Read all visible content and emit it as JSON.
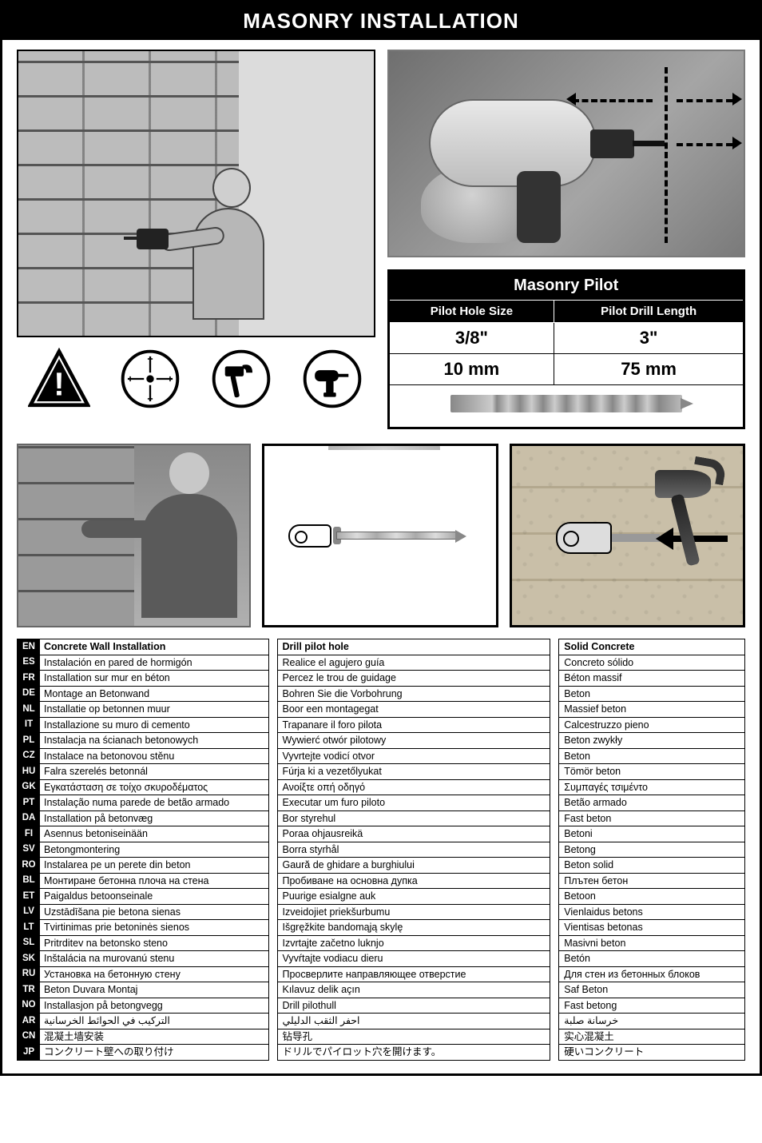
{
  "header": "MASONRY INSTALLATION",
  "spec": {
    "title": "Masonry Pilot",
    "col1": "Pilot Hole Size",
    "col2": "Pilot Drill Length",
    "r1c1": "3/8\"",
    "r1c2": "3\"",
    "r2c1": "10 mm",
    "r2c2": "75 mm"
  },
  "langCodes": [
    "EN",
    "ES",
    "FR",
    "DE",
    "NL",
    "IT",
    "PL",
    "CZ",
    "HU",
    "GK",
    "PT",
    "DA",
    "FI",
    "SV",
    "RO",
    "BL",
    "ET",
    "LV",
    "LT",
    "SL",
    "SK",
    "RU",
    "TR",
    "NO",
    "AR",
    "CN",
    "JP"
  ],
  "col1": {
    "hdr": "Concrete Wall Installation",
    "rows": [
      "Instalación en pared de hormigón",
      "Installation sur mur en béton",
      "Montage an Betonwand",
      "Installatie op betonnen muur",
      "Installazione su muro di cemento",
      "Instalacja na ścianach betonowych",
      "Instalace na betonovou stěnu",
      "Falra szerelés betonnál",
      "Εγκατάσταση σε τοίχο σκυροδέματος",
      "Instalação numa parede de betão armado",
      "Installation på betonvæg",
      "Asennus betoniseinään",
      "Betongmontering",
      "Instalarea pe un perete din beton",
      "Монтиране бетонна плоча на стена",
      "Paigaldus betoonseinale",
      "Uzstādīšana pie betona sienas",
      "Tvirtinimas prie betoninės sienos",
      "Pritrditev na betonsko steno",
      "Inštalácia na murovanú stenu",
      "Установка на бетонную стену",
      "Beton Duvara Montaj",
      "Installasjon på betongvegg",
      "التركيب في الحوائط الخرسانية",
      "混凝土墙安装",
      "コンクリート壁への取り付け"
    ]
  },
  "col2": {
    "hdr": "Drill pilot hole",
    "rows": [
      "Realice el agujero guía",
      "Percez le trou de guidage",
      "Bohren Sie die Vorbohrung",
      "Boor een montagegat",
      "Trapanare il foro pilota",
      "Wywierć otwór pilotowy",
      "Vyvrtejte vodicí otvor",
      "Fúrja ki a vezetőlyukat",
      "Ανοίξτε οπή οδηγό",
      "Executar um furo piloto",
      "Bor styrehul",
      "Poraa ohjausreikä",
      "Borra styrhål",
      "Gaură de ghidare a burghiului",
      "Пробиване на основна дупка",
      "Puurige esialgne auk",
      "Izveidojiet priekšurbumu",
      "Išgręžkite bandomąją skylę",
      "Izvrtajte začetno luknjo",
      "Vyvŕtajte vodiacu dieru",
      "Просверлите направляющее отверстие",
      "Kılavuz delik açın",
      "Drill pilothull",
      "احفر الثقب الدليلي",
      "钻导孔",
      "ドリルでパイロット穴を開けます。"
    ]
  },
  "col3": {
    "hdr": "Solid Concrete",
    "rows": [
      "Concreto sólido",
      "Béton massif",
      "Beton",
      "Massief beton",
      "Calcestruzzo pieno",
      "Beton zwykły",
      "Beton",
      "Tömör beton",
      "Συμπαγές τσιμέντο",
      "Betão armado",
      "Fast beton",
      "Betoni",
      "Betong",
      "Beton solid",
      "Плътен бетон",
      "Betoon",
      "Vienlaidus betons",
      "Vientisas betonas",
      "Masivni beton",
      "Betón",
      "Для стен из бетонных блоков",
      "Saf Beton",
      "Fast betong",
      "خرسانة صلبة",
      "实心混凝土",
      "硬いコンクリート"
    ]
  }
}
